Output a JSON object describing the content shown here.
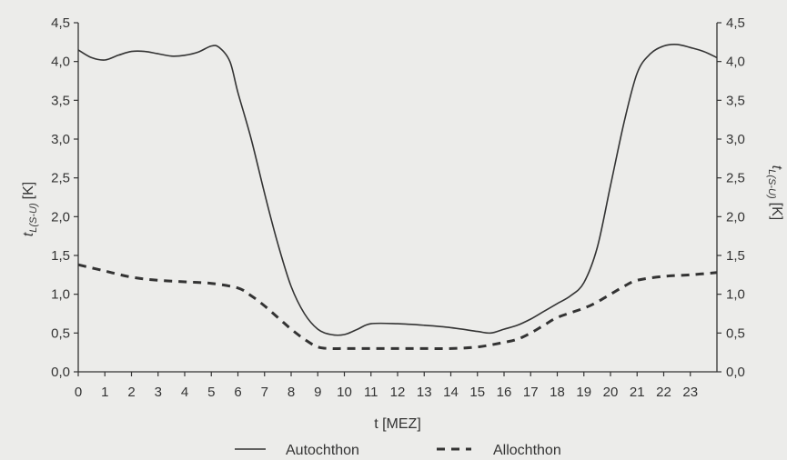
{
  "chart_data": {
    "type": "line",
    "xlabel": "t [MEZ]",
    "ylabel_left": "t_{L(S-U)} [K]",
    "ylabel_right": "t_{L(S-U)} [K]",
    "ylabel_main": "t",
    "ylabel_sub": "L(S-U)",
    "ylabel_unit": "[K]",
    "xlim": [
      0,
      24
    ],
    "ylim": [
      0,
      4.5
    ],
    "x_ticks": [
      "0",
      "1",
      "2",
      "3",
      "4",
      "5",
      "6",
      "7",
      "8",
      "9",
      "10",
      "11",
      "12",
      "13",
      "14",
      "15",
      "16",
      "17",
      "18",
      "19",
      "20",
      "21",
      "22",
      "23"
    ],
    "y_ticks": [
      "0,0",
      "0,5",
      "1,0",
      "1,5",
      "2,0",
      "2,5",
      "3,0",
      "3,5",
      "4,0",
      "4,5"
    ],
    "grid": false,
    "legend_position": "bottom-center",
    "series": [
      {
        "name": "Autochthon",
        "style": "solid",
        "color": "#333333",
        "x": [
          0,
          0.5,
          1,
          1.5,
          2,
          2.5,
          3,
          3.5,
          4,
          4.5,
          5,
          5.3,
          5.7,
          6,
          6.5,
          7,
          7.5,
          8,
          8.5,
          9,
          9.5,
          10,
          10.5,
          11,
          12,
          13,
          14,
          15,
          15.5,
          16,
          16.5,
          17,
          17.5,
          18,
          18.5,
          19,
          19.5,
          20,
          20.5,
          21,
          21.5,
          22,
          22.5,
          23,
          23.5,
          24
        ],
        "y": [
          4.15,
          4.05,
          4.02,
          4.08,
          4.13,
          4.13,
          4.1,
          4.07,
          4.08,
          4.12,
          4.2,
          4.18,
          4.0,
          3.6,
          3.0,
          2.3,
          1.65,
          1.1,
          0.75,
          0.55,
          0.48,
          0.48,
          0.55,
          0.62,
          0.62,
          0.6,
          0.57,
          0.52,
          0.5,
          0.55,
          0.6,
          0.68,
          0.78,
          0.88,
          0.98,
          1.15,
          1.6,
          2.4,
          3.2,
          3.85,
          4.1,
          4.2,
          4.22,
          4.18,
          4.13,
          4.05
        ]
      },
      {
        "name": "Allochthon",
        "style": "dashed",
        "color": "#333333",
        "x": [
          0,
          1,
          2,
          3,
          4,
          5,
          6,
          6.5,
          7,
          7.5,
          8,
          8.5,
          9,
          9.5,
          10,
          11,
          12,
          13,
          14,
          15,
          16,
          16.5,
          17,
          17.5,
          18,
          19,
          19.5,
          20,
          20.5,
          21,
          22,
          23,
          24
        ],
        "y": [
          1.38,
          1.3,
          1.22,
          1.18,
          1.16,
          1.14,
          1.08,
          0.98,
          0.85,
          0.7,
          0.55,
          0.42,
          0.32,
          0.3,
          0.3,
          0.3,
          0.3,
          0.3,
          0.3,
          0.32,
          0.38,
          0.42,
          0.5,
          0.6,
          0.7,
          0.82,
          0.9,
          1.0,
          1.1,
          1.18,
          1.23,
          1.25,
          1.28
        ]
      }
    ]
  }
}
